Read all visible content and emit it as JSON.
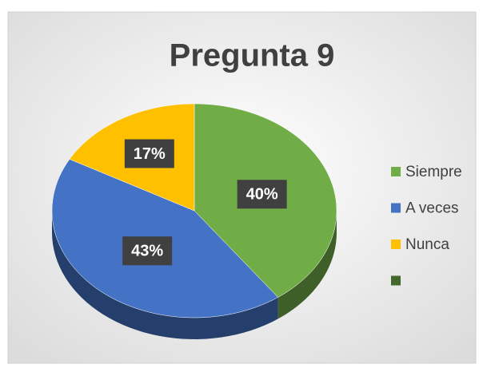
{
  "chart_data": {
    "type": "pie",
    "title": "Pregunta 9",
    "categories": [
      "Siempre",
      "A veces",
      "Nunca",
      null
    ],
    "values": [
      40,
      43,
      17,
      0
    ],
    "value_labels": [
      "40%",
      "43%",
      "17%",
      null
    ],
    "colors": [
      "#70ad47",
      "#4472c4",
      "#ffc000",
      "#43682b"
    ],
    "legend": "right"
  }
}
